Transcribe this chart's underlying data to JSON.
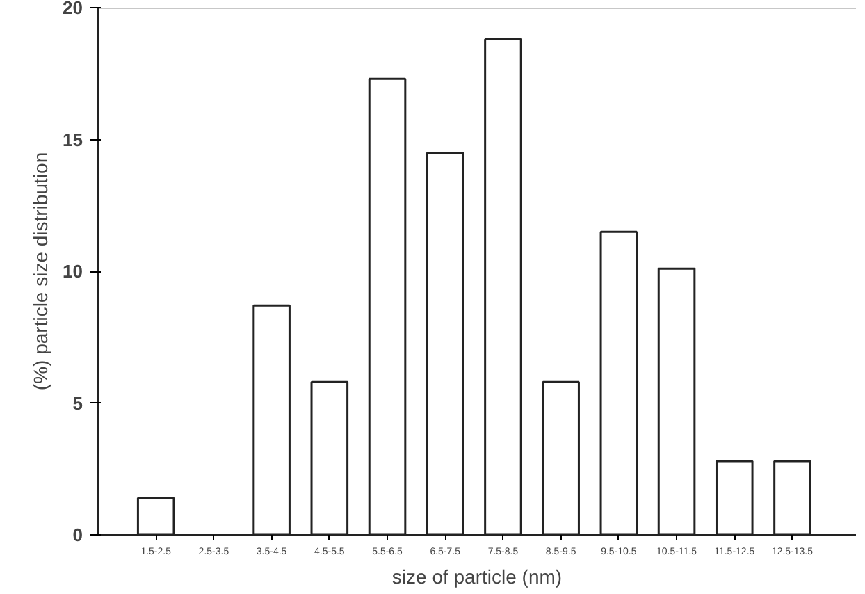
{
  "chart_data": {
    "type": "bar",
    "xlabel": "size of particle (nm)",
    "ylabel": "(%) particle size distribution",
    "categories": [
      "1.5-2.5",
      "2.5-3.5",
      "3.5-4.5",
      "4.5-5.5",
      "5.5-6.5",
      "6.5-7.5",
      "7.5-8.5",
      "8.5-9.5",
      "9.5-10.5",
      "10.5-11.5",
      "11.5-12.5",
      "12.5-13.5"
    ],
    "values": [
      1.4,
      0,
      8.7,
      5.8,
      17.3,
      14.5,
      18.8,
      5.8,
      11.5,
      10.1,
      2.8,
      2.8
    ],
    "color": "#ffffff",
    "ylim": [
      0,
      20
    ],
    "yticks": [
      0,
      5,
      10,
      15,
      20
    ],
    "grid": false
  }
}
